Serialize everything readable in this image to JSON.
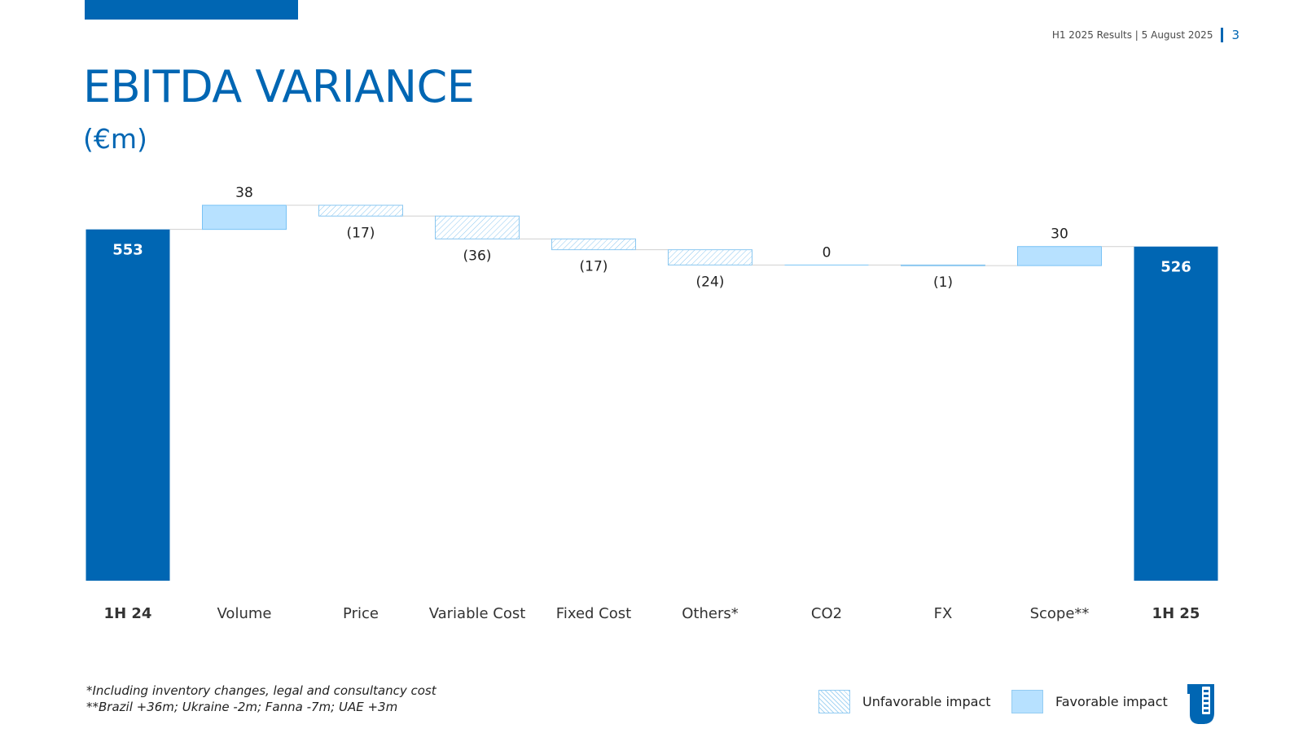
{
  "header": {
    "meta": "H1 2025 Results | 5 August 2025",
    "page_number": "3"
  },
  "page": {
    "title": "EBITDA VARIANCE",
    "subtitle": "(€m)"
  },
  "chart_data": {
    "type": "bar",
    "chart_subtype": "waterfall",
    "categories": [
      "1H 24",
      "Volume",
      "Price",
      "Variable Cost",
      "Fixed Cost",
      "Others*",
      "CO2",
      "FX",
      "Scope**",
      "1H 25"
    ],
    "values": [
      553,
      38,
      -17,
      -36,
      -17,
      -24,
      0,
      -1,
      30,
      526
    ],
    "data_labels": [
      "553",
      "38",
      "(17)",
      "(36)",
      "(17)",
      "(24)",
      "0",
      "(1)",
      "30",
      "526"
    ],
    "bar_kinds": [
      "total",
      "delta",
      "delta",
      "delta",
      "delta",
      "delta",
      "delta",
      "delta",
      "delta",
      "total"
    ],
    "ylim": [
      0,
      600
    ],
    "grid": false,
    "legend_placement": "bottom-right",
    "colors": {
      "total": "#0066b3",
      "favorable": "#b7e1ff",
      "favorable_border": "#78c2f5",
      "unfavorable_stroke": "#8ac7f0",
      "connector": "#d0d0d0"
    }
  },
  "legend": {
    "unfavorable_label": "Unfavorable impact",
    "favorable_label": "Favorable impact"
  },
  "footnotes": [
    "*Including inventory changes, legal and consultancy cost",
    "**Brazil +36m; Ukraine -2m; Fanna -7m; UAE +3m"
  ],
  "icons": {
    "logo": "company-logo-icon"
  },
  "colors": {
    "accent": "#0066b3",
    "text": "#222222",
    "muted": "#4a4a4a"
  }
}
